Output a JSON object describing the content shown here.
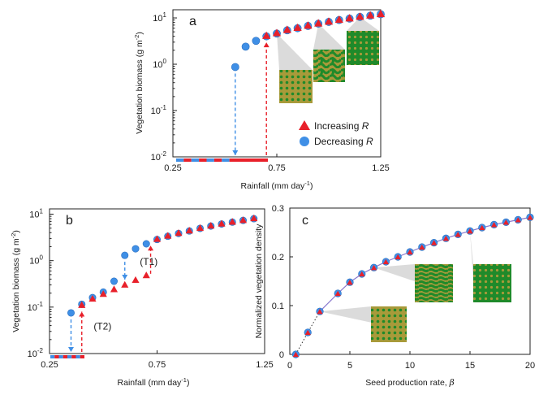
{
  "colors": {
    "red": "#e8202a",
    "blue": "#3f8fe6",
    "blue_dark": "#3a78c8",
    "pattern_bg": "#a89a3a",
    "pattern_green": "#1f8a2a",
    "line_purple": "#8877cc"
  },
  "chart_data": [
    {
      "id": "a",
      "type": "scatter",
      "panel_label": "a",
      "xlabel_main": "Rainfall (mm day",
      "xlabel_sup": "-1",
      "xlabel_close": ")",
      "ylabel_main": "Vegetation biomass (g m",
      "ylabel_sup": "-2",
      "ylabel_close": ")",
      "x_scale": "linear",
      "y_scale": "log",
      "xlim": [
        0.25,
        1.25
      ],
      "ylim": [
        0.01,
        15
      ],
      "x_ticks": [
        0.25,
        0.75,
        1.25
      ],
      "x_tick_labels": [
        "0.25",
        "0.75",
        "1.25"
      ],
      "y_ticks": [
        0.01,
        0.1,
        1,
        10
      ],
      "y_tick_labels": [
        {
          "base": "10",
          "exp": "-2"
        },
        {
          "base": "10",
          "exp": "-1"
        },
        {
          "base": "10",
          "exp": "0"
        },
        {
          "base": "10",
          "exp": "1"
        }
      ],
      "series": [
        {
          "name": "Increasing R",
          "marker": "triangle",
          "color": "#e8202a",
          "x": [
            0.7,
            0.75,
            0.8,
            0.85,
            0.9,
            0.95,
            1.0,
            1.05,
            1.1,
            1.15,
            1.2,
            1.25
          ],
          "y": [
            4.1,
            4.7,
            5.5,
            6.1,
            6.8,
            7.6,
            8.3,
            9.1,
            9.8,
            10.6,
            11.3,
            12.1
          ]
        },
        {
          "name": "Decreasing R",
          "marker": "circle",
          "color": "#3f8fe6",
          "x": [
            0.55,
            0.6,
            0.65,
            0.7,
            0.75,
            0.8,
            0.85,
            0.9,
            0.95,
            1.0,
            1.05,
            1.1,
            1.15,
            1.2,
            1.25
          ],
          "y": [
            0.87,
            2.4,
            3.2,
            4.0,
            4.6,
            5.4,
            6.0,
            6.7,
            7.5,
            8.2,
            9.0,
            9.7,
            10.5,
            11.2,
            12.0
          ]
        }
      ],
      "legend": {
        "position": "lower-right",
        "entries": [
          {
            "label": "Increasing",
            "italic": "R",
            "marker": "triangle",
            "color": "#e8202a"
          },
          {
            "label": "Decreasing",
            "italic": "R",
            "marker": "circle",
            "color": "#3f8fe6"
          }
        ]
      },
      "transitions": [
        {
          "color": "#3f8fe6",
          "x": 0.55,
          "direction": "down",
          "from_y": 0.87,
          "to_y": 0.01
        },
        {
          "color": "#e8202a",
          "x": 0.7,
          "direction": "up",
          "from_y": 0.01,
          "to_y": 4.1
        }
      ],
      "insets": [
        {
          "pattern": "spots",
          "anchor_x": 0.75,
          "anchor_y": 4.6
        },
        {
          "pattern": "labyrinth",
          "anchor_x": 0.95,
          "anchor_y": 7.5
        },
        {
          "pattern": "gaps",
          "anchor_x": 1.15,
          "anchor_y": 10.5
        }
      ]
    },
    {
      "id": "b",
      "type": "scatter",
      "panel_label": "b",
      "xlabel_main": "Rainfall (mm day",
      "xlabel_sup": "-1",
      "xlabel_close": ")",
      "ylabel_main": "Vegetation biomass (g m",
      "ylabel_sup": "-2",
      "ylabel_close": ")",
      "x_scale": "linear",
      "y_scale": "log",
      "xlim": [
        0.25,
        1.25
      ],
      "ylim": [
        0.01,
        13
      ],
      "x_ticks": [
        0.25,
        0.75,
        1.25
      ],
      "x_tick_labels": [
        "0.25",
        "0.75",
        "1.25"
      ],
      "y_ticks": [
        0.01,
        0.1,
        1,
        10
      ],
      "y_tick_labels": [
        {
          "base": "10",
          "exp": "-2"
        },
        {
          "base": "10",
          "exp": "-1"
        },
        {
          "base": "10",
          "exp": "0"
        },
        {
          "base": "10",
          "exp": "1"
        }
      ],
      "series": [
        {
          "name": "Increasing R",
          "marker": "triangle",
          "color": "#e8202a",
          "x": [
            0.4,
            0.45,
            0.5,
            0.55,
            0.6,
            0.65,
            0.7,
            0.75,
            0.8,
            0.85,
            0.9,
            0.95,
            1.0,
            1.05,
            1.1,
            1.15,
            1.2
          ],
          "y": [
            0.11,
            0.15,
            0.19,
            0.24,
            0.3,
            0.38,
            0.48,
            2.9,
            3.4,
            3.9,
            4.4,
            5.0,
            5.6,
            6.2,
            6.8,
            7.4,
            8.1
          ]
        },
        {
          "name": "Decreasing R",
          "marker": "circle",
          "color": "#3f8fe6",
          "x": [
            0.35,
            0.4,
            0.45,
            0.5,
            0.55,
            0.6,
            0.65,
            0.7,
            0.75,
            0.8,
            0.85,
            0.9,
            0.95,
            1.0,
            1.05,
            1.1,
            1.15,
            1.2
          ],
          "y": [
            0.075,
            0.115,
            0.16,
            0.21,
            0.36,
            1.3,
            1.8,
            2.3,
            2.85,
            3.35,
            3.85,
            4.35,
            4.95,
            5.55,
            6.15,
            6.75,
            7.35,
            8.0
          ]
        }
      ],
      "transitions": [
        {
          "color": "#3f8fe6",
          "x": 0.35,
          "direction": "down",
          "from_y": 0.075,
          "to_y": 0.01
        },
        {
          "color": "#e8202a",
          "x": 0.4,
          "direction": "up",
          "from_y": 0.01,
          "to_y": 0.11
        },
        {
          "color": "#3f8fe6",
          "x": 0.6,
          "direction": "down",
          "from_y": 1.3,
          "to_y": 0.36
        },
        {
          "color": "#e8202a",
          "x": 0.72,
          "direction": "up",
          "from_y": 0.48,
          "to_y": 2.9
        }
      ],
      "annotations": [
        {
          "text": "(T1)",
          "x": 0.67,
          "y": 0.8
        },
        {
          "text": "(T2)",
          "x": 0.455,
          "y": 0.033
        }
      ]
    },
    {
      "id": "c",
      "type": "line",
      "panel_label": "c",
      "xlabel_main": "Seed production rate, ",
      "xlabel_italic": "β",
      "ylabel": "Normalized vegetation density",
      "x_scale": "linear",
      "y_scale": "linear",
      "xlim": [
        0,
        20
      ],
      "ylim": [
        0,
        0.3
      ],
      "x_ticks": [
        0,
        5,
        10,
        15,
        20
      ],
      "x_tick_labels": [
        "0",
        "5",
        "10",
        "15",
        "20"
      ],
      "y_ticks": [
        0,
        0.1,
        0.2,
        0.3
      ],
      "y_tick_labels": [
        "0",
        "0.1",
        "0.2",
        "0.3"
      ],
      "series": [
        {
          "name": "data",
          "marker": "circle+triangle",
          "x": [
            0.5,
            1.5,
            2.5,
            4,
            5,
            6,
            7,
            8,
            9,
            10,
            11,
            12,
            13,
            14,
            15,
            16,
            17,
            18,
            19,
            20
          ],
          "y": [
            0.0,
            0.045,
            0.088,
            0.125,
            0.148,
            0.165,
            0.178,
            0.19,
            0.2,
            0.21,
            0.22,
            0.229,
            0.238,
            0.246,
            0.253,
            0.26,
            0.266,
            0.271,
            0.276,
            0.281
          ]
        }
      ],
      "insets": [
        {
          "pattern": "spots",
          "anchor_x": 2.5,
          "anchor_y": 0.088
        },
        {
          "pattern": "stripes",
          "anchor_x": 7,
          "anchor_y": 0.178
        },
        {
          "pattern": "gaps",
          "anchor_x": 15,
          "anchor_y": 0.253
        }
      ]
    }
  ]
}
